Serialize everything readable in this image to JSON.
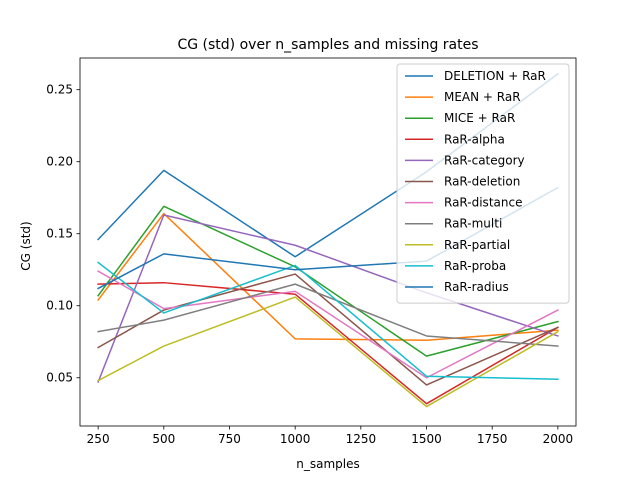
{
  "chart_data": {
    "type": "line",
    "title": "CG (std) over n_samples and missing rates",
    "xlabel": "n_samples",
    "ylabel": "CG (std)",
    "x": [
      250,
      500,
      1000,
      1500,
      2000
    ],
    "xlim": [
      181,
      2069
    ],
    "ylim": [
      0.0165,
      0.272
    ],
    "xticks": [
      250,
      500,
      750,
      1000,
      1250,
      1500,
      1750,
      2000
    ],
    "yticks": [
      0.05,
      0.1,
      0.15,
      0.2,
      0.25
    ],
    "ytick_labels": [
      "0.05",
      "0.10",
      "0.15",
      "0.20",
      "0.25"
    ],
    "legend_position": "top-right",
    "grid": false,
    "series": [
      {
        "name": "DELETION + RaR",
        "color": "#1f77b4",
        "values": [
          0.146,
          0.194,
          0.134,
          0.193,
          0.261
        ]
      },
      {
        "name": "MEAN + RaR",
        "color": "#ff7f0e",
        "values": [
          0.104,
          0.164,
          0.077,
          0.076,
          0.083
        ]
      },
      {
        "name": "MICE + RaR",
        "color": "#2ca02c",
        "values": [
          0.107,
          0.169,
          0.127,
          0.065,
          0.089
        ]
      },
      {
        "name": "RaR-alpha",
        "color": "#d62728",
        "values": [
          0.115,
          0.116,
          0.108,
          0.032,
          0.085
        ]
      },
      {
        "name": "RaR-category",
        "color": "#9467bd",
        "values": [
          0.047,
          0.163,
          0.142,
          0.109,
          0.079
        ]
      },
      {
        "name": "RaR-deletion",
        "color": "#8c564b",
        "values": [
          0.071,
          0.097,
          0.122,
          0.045,
          0.085
        ]
      },
      {
        "name": "RaR-distance",
        "color": "#e377c2",
        "values": [
          0.124,
          0.098,
          0.11,
          0.05,
          0.097
        ]
      },
      {
        "name": "RaR-multi",
        "color": "#7f7f7f",
        "values": [
          0.082,
          0.09,
          0.115,
          0.079,
          0.072
        ]
      },
      {
        "name": "RaR-partial",
        "color": "#bcbd22",
        "values": [
          0.048,
          0.072,
          0.106,
          0.03,
          0.082
        ]
      },
      {
        "name": "RaR-proba",
        "color": "#17becf",
        "values": [
          0.13,
          0.095,
          0.128,
          0.051,
          0.049
        ]
      },
      {
        "name": "RaR-radius",
        "color": "#1f77b4",
        "values": [
          0.112,
          0.136,
          0.125,
          0.131,
          0.182
        ]
      }
    ]
  }
}
